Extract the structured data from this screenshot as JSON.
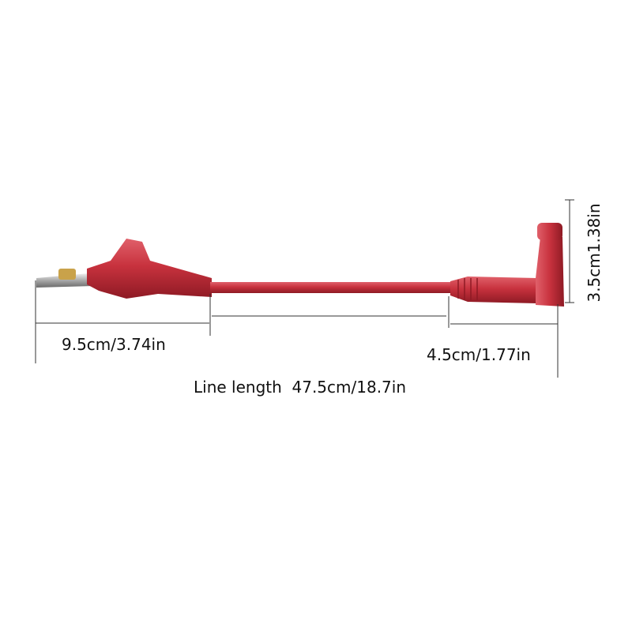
{
  "dimensions": {
    "clip_length": "9.5cm/3.74in",
    "plug_length": "4.5cm/1.77in",
    "line_length": "Line length  47.5cm/18.7in",
    "plug_height": "3.5cm1.38in"
  }
}
